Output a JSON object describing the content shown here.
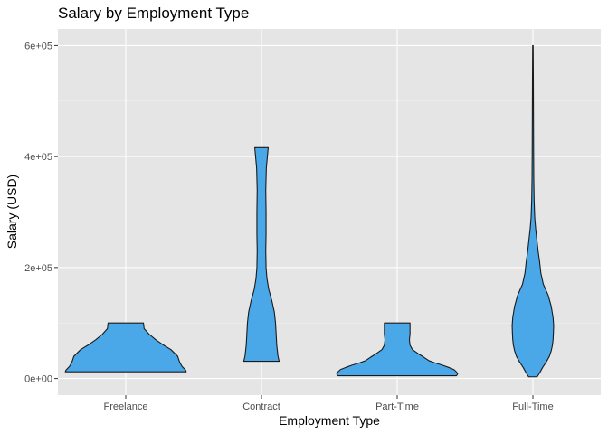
{
  "chart_data": {
    "type": "violin",
    "title": "Salary by Employment Type",
    "xlabel": "Employment Type",
    "ylabel": "Salary (USD)",
    "categories": [
      "Freelance",
      "Contract",
      "Part-Time",
      "Full-Time"
    ],
    "ylim": [
      -30000,
      630000
    ],
    "yticks": [
      0,
      200000,
      400000,
      600000
    ],
    "ytick_labels": [
      "0e+00",
      "2e+05",
      "4e+05",
      "6e+05"
    ],
    "fill_color": "#4AA8E8",
    "panel_color": "#E5E5E5",
    "grid": true,
    "violins": [
      {
        "category": "Freelance",
        "profile": [
          [
            12000,
            0.99
          ],
          [
            15000,
            0.98
          ],
          [
            22000,
            0.92
          ],
          [
            30000,
            0.88
          ],
          [
            40000,
            0.85
          ],
          [
            52000,
            0.74
          ],
          [
            60000,
            0.62
          ],
          [
            70000,
            0.49
          ],
          [
            80000,
            0.38
          ],
          [
            90000,
            0.3
          ],
          [
            100000,
            0.29
          ]
        ]
      },
      {
        "category": "Contract",
        "profile": [
          [
            31000,
            0.29
          ],
          [
            40000,
            0.27
          ],
          [
            60000,
            0.25
          ],
          [
            80000,
            0.24
          ],
          [
            100000,
            0.23
          ],
          [
            120000,
            0.21
          ],
          [
            140000,
            0.17
          ],
          [
            160000,
            0.12
          ],
          [
            180000,
            0.09
          ],
          [
            200000,
            0.075
          ],
          [
            230000,
            0.07
          ],
          [
            260000,
            0.075
          ],
          [
            300000,
            0.075
          ],
          [
            340000,
            0.07
          ],
          [
            380000,
            0.08
          ],
          [
            416000,
            0.11
          ]
        ]
      },
      {
        "category": "Part-Time",
        "profile": [
          [
            5000,
            0.97
          ],
          [
            8000,
            0.99
          ],
          [
            12000,
            0.97
          ],
          [
            16000,
            0.93
          ],
          [
            20000,
            0.84
          ],
          [
            24000,
            0.74
          ],
          [
            28000,
            0.62
          ],
          [
            32000,
            0.52
          ],
          [
            38000,
            0.44
          ],
          [
            45000,
            0.34
          ],
          [
            52000,
            0.25
          ],
          [
            60000,
            0.21
          ],
          [
            70000,
            0.2
          ],
          [
            80000,
            0.21
          ],
          [
            90000,
            0.21
          ],
          [
            100000,
            0.21
          ]
        ]
      },
      {
        "category": "Full-Time",
        "profile": [
          [
            3000,
            0.07
          ],
          [
            10000,
            0.11
          ],
          [
            20000,
            0.16
          ],
          [
            30000,
            0.22
          ],
          [
            40000,
            0.27
          ],
          [
            50000,
            0.3
          ],
          [
            60000,
            0.32
          ],
          [
            70000,
            0.33
          ],
          [
            80000,
            0.335
          ],
          [
            95000,
            0.34
          ],
          [
            110000,
            0.33
          ],
          [
            130000,
            0.3
          ],
          [
            150000,
            0.25
          ],
          [
            170000,
            0.17
          ],
          [
            190000,
            0.13
          ],
          [
            210000,
            0.11
          ],
          [
            230000,
            0.085
          ],
          [
            250000,
            0.065
          ],
          [
            270000,
            0.045
          ],
          [
            290000,
            0.03
          ],
          [
            320000,
            0.02
          ],
          [
            360000,
            0.014
          ],
          [
            420000,
            0.011
          ],
          [
            480000,
            0.009
          ],
          [
            540000,
            0.007
          ],
          [
            600000,
            0.004
          ]
        ]
      }
    ]
  }
}
